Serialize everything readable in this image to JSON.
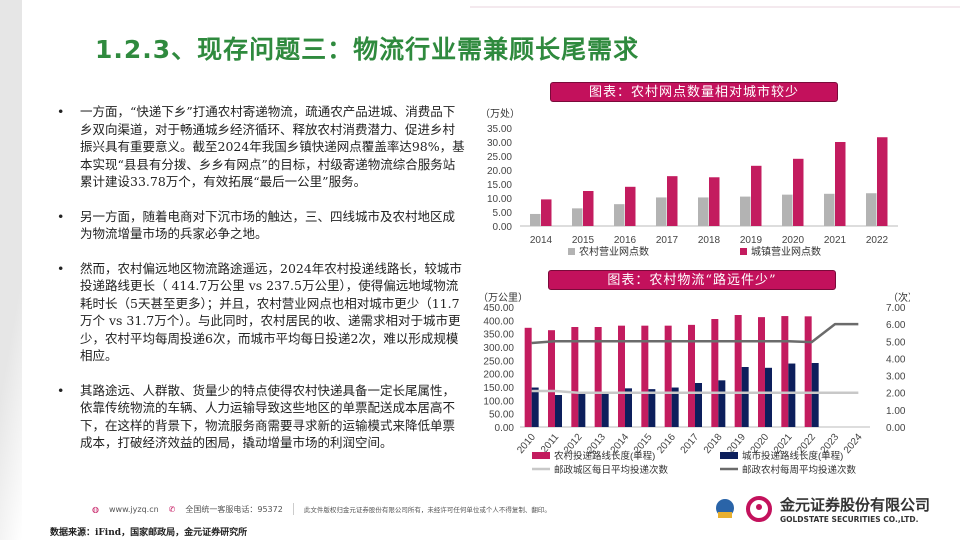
{
  "title": "1.2.3、现存问题三：物流行业需兼顾长尾需求",
  "bullets": [
    "一方面，“快递下乡”打通农村寄递物流，疏通农产品进城、消费品下乡双向渠道，对于畅通城乡经济循环、释放农村消费潜力、促进乡村振兴具有重要意义。截至2024年我国乡镇快递网点覆盖率达98%，基本实现“县县有分拨、乡乡有网点”的目标，村级寄递物流综合服务站累计建设33.78万个，有效拓展“最后一公里”服务。",
    "另一方面，随着电商对下沉市场的触达，三、四线城市及农村地区成为物流增量市场的兵家必争之地。",
    "然而，农村偏远地区物流路途遥远，2024年农村投递线路长，较城市投递路线更长（ 414.7万公里 vs 237.5万公里），使得偏远地域物流耗时长（5天甚至更多）；并且，农村营业网点也相对城市更少（11.7万个 vs 31.7万个）。与此同时，农村居民的收、递需求相对于城市更少，农村平均每周投递6次，而城市平均每日投递2次，难以形成规模相应。",
    "其路途远、人群散、货量少的特点使得农村快递具备一定长尾属性，依靠传统物流的车辆、人力运输导致这些地区的单票配送成本居高不下，在这样的背景下，物流服务商需要寻求新的运输模式来降低单票成本，打破经济效益的困局，撬动增量市场的利润空间。"
  ],
  "colors": {
    "title": "#2f8a3e",
    "accent": "#c3115c",
    "rural": "#c31c5f",
    "urban_gray": "#b3b3b3",
    "navy": "#0d1f5c",
    "line_light": "#c8c8c8",
    "line_dark": "#6b6b6b"
  },
  "chart_data": [
    {
      "type": "bar",
      "caption": "图表：农村网点数量相对城市较少",
      "ylabel": "（万处）",
      "ylim": [
        0,
        35
      ],
      "yticks": [
        "0.00",
        "5.00",
        "10.00",
        "15.00",
        "20.00",
        "25.00",
        "30.00",
        "35.00"
      ],
      "categories": [
        "2014",
        "2015",
        "2016",
        "2017",
        "2018",
        "2019",
        "2020",
        "2021",
        "2022"
      ],
      "series": [
        {
          "name": "农村营业网点数",
          "values": [
            4.3,
            6.3,
            7.8,
            10.2,
            10.2,
            10.5,
            11.2,
            11.5,
            11.7
          ]
        },
        {
          "name": "城镇营业网点数",
          "values": [
            9.5,
            12.5,
            14.0,
            17.8,
            17.4,
            21.5,
            24.0,
            30.0,
            31.7
          ]
        }
      ],
      "legend": "bottom",
      "grid": false
    },
    {
      "type": "bar+line",
      "caption": "图表：农村物流“路远件少”",
      "ylabel": "（万公里）",
      "y2label": "（次）",
      "ylim": [
        0,
        450
      ],
      "y2lim": [
        0,
        7
      ],
      "yticks": [
        "0.00",
        "50.00",
        "100.00",
        "150.00",
        "200.00",
        "250.00",
        "300.00",
        "350.00",
        "400.00",
        "450.00"
      ],
      "y2ticks": [
        "0.00",
        "1.00",
        "2.00",
        "3.00",
        "4.00",
        "5.00",
        "6.00",
        "7.00"
      ],
      "categories": [
        "2010",
        "2011",
        "2012",
        "2013",
        "2014",
        "2015",
        "2016",
        "2017",
        "2018",
        "2019",
        "2020",
        "2021",
        "2022",
        "2023",
        "2024"
      ],
      "series": [
        {
          "name": "农村投递路线长度(单程)",
          "kind": "bar",
          "values": [
            372,
            363,
            375,
            375,
            380,
            380,
            380,
            383,
            405,
            420,
            412,
            416,
            415,
            null,
            null
          ]
        },
        {
          "name": "城市投递路线长度(单程)",
          "kind": "bar",
          "values": [
            148,
            120,
            128,
            128,
            145,
            142,
            148,
            165,
            175,
            225,
            222,
            238,
            240,
            null,
            null
          ]
        },
        {
          "name": "邮政城区每日平均投递次数",
          "kind": "line",
          "axis": "right",
          "values": [
            2.1,
            2.1,
            2.0,
            2.0,
            2.0,
            2.0,
            2.0,
            2.0,
            2.0,
            2.0,
            2.0,
            2.0,
            2.0,
            2.0,
            2.0
          ]
        },
        {
          "name": "邮政农村每周平均投递次数",
          "kind": "line",
          "axis": "right",
          "values": [
            4.9,
            5.0,
            5.0,
            5.0,
            5.0,
            5.0,
            5.0,
            5.0,
            5.0,
            5.0,
            5.0,
            5.0,
            4.95,
            6.0,
            6.0
          ]
        }
      ],
      "legend": "bottom",
      "grid": false
    }
  ],
  "footer": {
    "website": "www.jyzq.cn",
    "hotline": "全国统一客服电话：95372",
    "copyright": "此文件版权归金元证券股份有限公司所有，未经许可任何单位或个人不得复制、翻印。",
    "company_cn": "金元证券股份有限公司",
    "company_en": "GOLDSTATE SECURITIES CO.,LTD.",
    "source": "数据来源：iFind，国家邮政局，金元证券研究所"
  }
}
